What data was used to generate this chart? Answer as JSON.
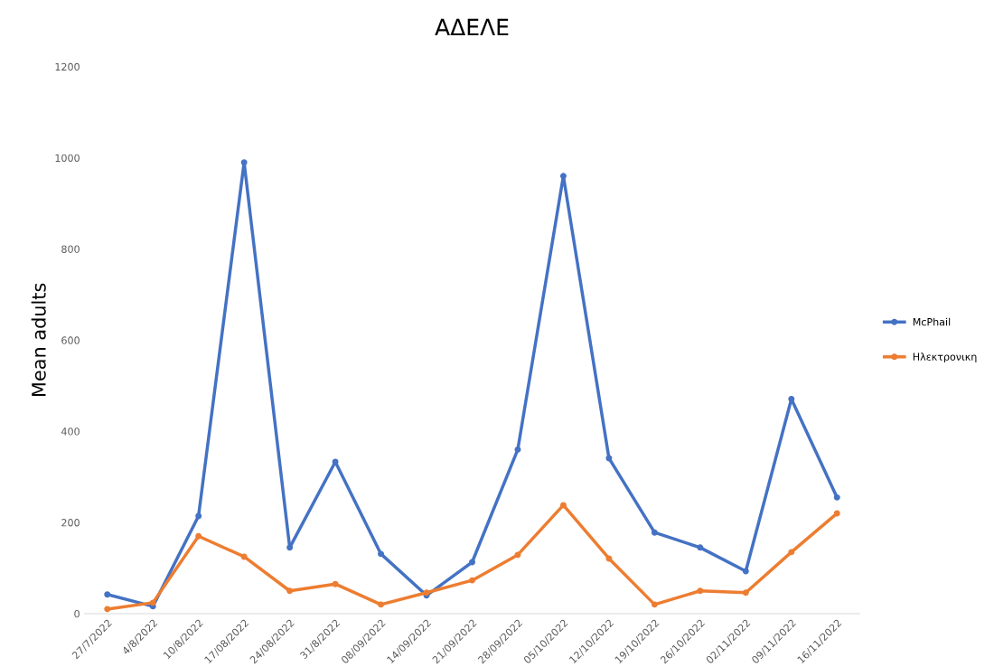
{
  "chart_data": {
    "type": "line",
    "title": "ΑΔΕΛΕ",
    "ylabel": "Mean adults",
    "categories": [
      "27/7/2022",
      "4/8/2022",
      "10/8/2022",
      "17/08/2022",
      "24/08/2022",
      "31/8/2022",
      "08/09/2022",
      "14/09/2022",
      "21/09/2022",
      "28/09/2022",
      "05/10/2022",
      "12/10/2022",
      "19/10/2022",
      "26/10/2022",
      "02/11/2022",
      "09/11/2022",
      "16/11/2022"
    ],
    "series": [
      {
        "name": "McPhail",
        "color": "#4472c4",
        "values": [
          42,
          16,
          214,
          990,
          145,
          333,
          131,
          40,
          113,
          360,
          960,
          341,
          178,
          145,
          93,
          471,
          255
        ]
      },
      {
        "name": "Ηλεκτρονικη",
        "color": "#ed7d31",
        "values": [
          10,
          24,
          170,
          125,
          50,
          65,
          20,
          46,
          73,
          129,
          238,
          121,
          20,
          50,
          46,
          135,
          220
        ]
      }
    ],
    "ylim": [
      0,
      1200
    ],
    "yticks": [
      0,
      200,
      400,
      600,
      800,
      1000,
      1200
    ],
    "grid": false,
    "legend": "right",
    "marker": "circle",
    "line_style": "solid"
  }
}
